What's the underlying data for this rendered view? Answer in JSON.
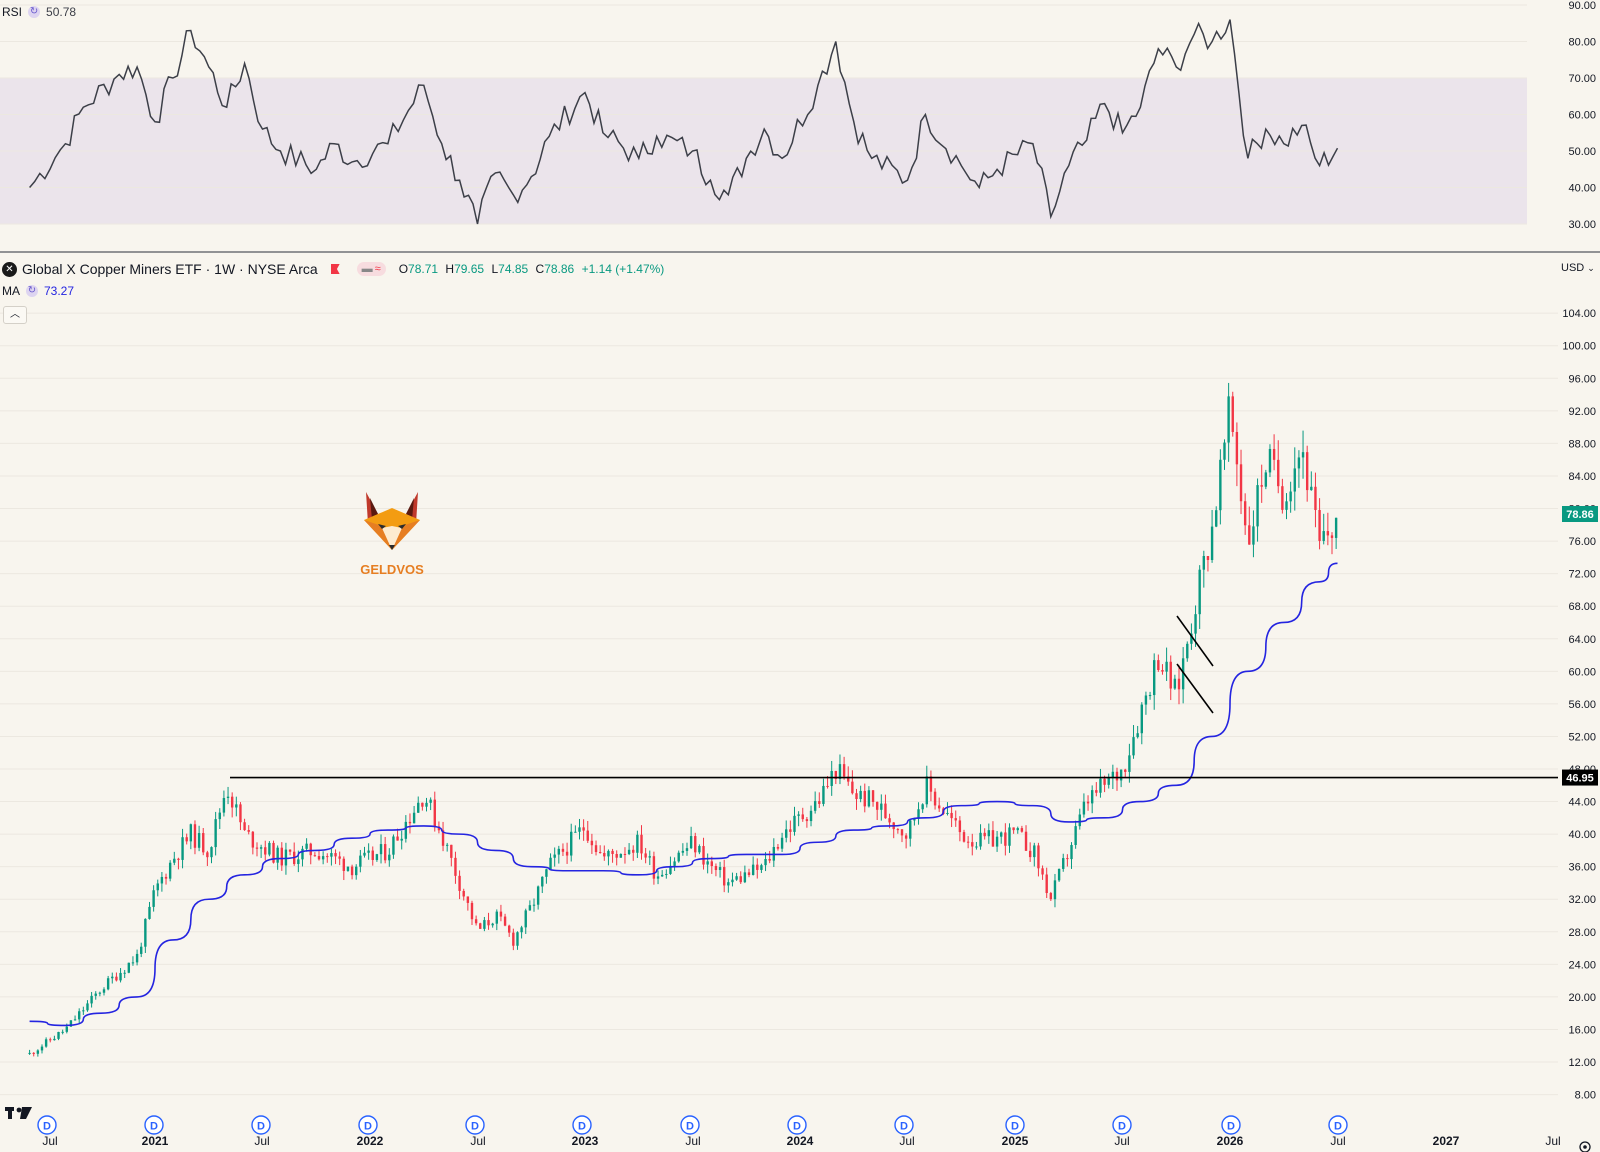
{
  "rsi_pane": {
    "label": "RSI",
    "value": "50.78",
    "ticks": [
      "90.00",
      "80.00",
      "70.00",
      "60.00",
      "50.00",
      "40.00",
      "30.00"
    ],
    "tick_values": [
      90,
      80,
      70,
      60,
      50,
      40,
      30
    ]
  },
  "price_pane": {
    "title": "Global X Copper Miners ETF · 1W · NYSE Arca",
    "ohlc": {
      "o_label": "O",
      "o": "78.71",
      "h_label": "H",
      "h": "79.65",
      "l_label": "L",
      "l": "74.85",
      "c_label": "C",
      "c": "78.86",
      "change": "+1.14 (+1.47%)"
    },
    "ma_label": "MA",
    "ma_value": "73.27",
    "currency": "USD",
    "last_price_badge": "78.86",
    "level_badge": "46.95",
    "ticks": [
      "104.00",
      "100.00",
      "96.00",
      "92.00",
      "88.00",
      "84.00",
      "80.00",
      "76.00",
      "72.00",
      "68.00",
      "64.00",
      "60.00",
      "56.00",
      "52.00",
      "48.00",
      "44.00",
      "40.00",
      "36.00",
      "32.00",
      "28.00",
      "24.00",
      "20.00",
      "16.00",
      "12.00",
      "8.00"
    ],
    "tick_values": [
      104,
      100,
      96,
      92,
      88,
      84,
      80,
      76,
      72,
      68,
      64,
      60,
      56,
      52,
      48,
      44,
      40,
      36,
      32,
      28,
      24,
      20,
      16,
      12,
      8
    ]
  },
  "watermark": {
    "text": "GELDVOS"
  },
  "x_axis": {
    "labels": [
      "Jul",
      "2021",
      "Jul",
      "2022",
      "Jul",
      "2023",
      "Jul",
      "2024",
      "Jul",
      "2025",
      "Jul",
      "2026",
      "Jul",
      "2027",
      "Jul"
    ],
    "year_flags": [
      false,
      true,
      false,
      true,
      false,
      true,
      false,
      true,
      false,
      true,
      false,
      true,
      false,
      true,
      false
    ],
    "dividend_marker": "D"
  },
  "colors": {
    "up": "#089981",
    "down": "#f23645",
    "ma": "#2424e0",
    "rsi_line": "#3c3f48",
    "rsi_band": "#e9e3ea",
    "background": "#f8f5ee"
  },
  "chart_data": [
    {
      "type": "line",
      "name": "RSI",
      "ylim": [
        30,
        90
      ],
      "bands": [
        30,
        50,
        70
      ],
      "points": [
        [
          "2020-06",
          40
        ],
        [
          "2020-08",
          52
        ],
        [
          "2020-09",
          62
        ],
        [
          "2020-11",
          71
        ],
        [
          "2020-12",
          73
        ],
        [
          "2021-01",
          58
        ],
        [
          "2021-02",
          70
        ],
        [
          "2021-03",
          83
        ],
        [
          "2021-04",
          73
        ],
        [
          "2021-05",
          62
        ],
        [
          "2021-06",
          74
        ],
        [
          "2021-07",
          56
        ],
        [
          "2021-08",
          50
        ],
        [
          "2021-10",
          45
        ],
        [
          "2021-11",
          52
        ],
        [
          "2021-12",
          47
        ],
        [
          "2022-02",
          52
        ],
        [
          "2022-04",
          68
        ],
        [
          "2022-05",
          52
        ],
        [
          "2022-06",
          42
        ],
        [
          "2022-07",
          30
        ],
        [
          "2022-08",
          44
        ],
        [
          "2022-09",
          38
        ],
        [
          "2022-10",
          43
        ],
        [
          "2022-11",
          54
        ],
        [
          "2023-01",
          66
        ],
        [
          "2023-02",
          55
        ],
        [
          "2023-04",
          48
        ],
        [
          "2023-05",
          54
        ],
        [
          "2023-07",
          50
        ],
        [
          "2023-08",
          42
        ],
        [
          "2023-09",
          38
        ],
        [
          "2023-10",
          48
        ],
        [
          "2023-11",
          56
        ],
        [
          "2023-12",
          48
        ],
        [
          "2024-02",
          68
        ],
        [
          "2024-03",
          80
        ],
        [
          "2024-04",
          58
        ],
        [
          "2024-05",
          48
        ],
        [
          "2024-07",
          42
        ],
        [
          "2024-08",
          60
        ],
        [
          "2024-10",
          46
        ],
        [
          "2024-11",
          40
        ],
        [
          "2024-12",
          45
        ],
        [
          "2025-02",
          52
        ],
        [
          "2025-03",
          32
        ],
        [
          "2025-04",
          46
        ],
        [
          "2025-05",
          53
        ],
        [
          "2025-06",
          63
        ],
        [
          "2025-07",
          55
        ],
        [
          "2025-08",
          62
        ],
        [
          "2025-09",
          78
        ],
        [
          "2025-10",
          73
        ],
        [
          "2025-11",
          82
        ],
        [
          "2025-12",
          80
        ],
        [
          "2026-01",
          86
        ],
        [
          "2026-02",
          48
        ],
        [
          "2026-03",
          56
        ],
        [
          "2026-04",
          52
        ],
        [
          "2026-05",
          57
        ],
        [
          "2026-06",
          46
        ],
        [
          "2026-07",
          50.78
        ]
      ]
    },
    {
      "type": "candlestick",
      "name": "Global X Copper Miners ETF · 1W · NYSE Arca",
      "ylim": [
        8,
        104
      ],
      "close_path": [
        [
          "2020-06",
          13
        ],
        [
          "2020-08",
          16
        ],
        [
          "2020-10",
          21
        ],
        [
          "2020-12",
          25
        ],
        [
          "2021-01",
          33
        ],
        [
          "2021-02",
          37
        ],
        [
          "2021-03",
          40
        ],
        [
          "2021-04",
          38
        ],
        [
          "2021-05",
          46
        ],
        [
          "2021-06",
          40
        ],
        [
          "2021-08",
          37
        ],
        [
          "2021-10",
          38
        ],
        [
          "2021-12",
          36
        ],
        [
          "2022-02",
          38
        ],
        [
          "2022-04",
          45
        ],
        [
          "2022-05",
          40
        ],
        [
          "2022-06",
          34
        ],
        [
          "2022-07",
          28
        ],
        [
          "2022-08",
          30
        ],
        [
          "2022-09",
          27
        ],
        [
          "2022-10",
          31
        ],
        [
          "2022-11",
          36
        ],
        [
          "2023-01",
          41
        ],
        [
          "2023-02",
          37
        ],
        [
          "2023-04",
          39
        ],
        [
          "2023-05",
          35
        ],
        [
          "2023-07",
          39
        ],
        [
          "2023-08",
          36
        ],
        [
          "2023-09",
          34
        ],
        [
          "2023-11",
          36
        ],
        [
          "2023-12",
          40
        ],
        [
          "2024-02",
          44
        ],
        [
          "2024-03",
          48
        ],
        [
          "2024-04",
          45
        ],
        [
          "2024-05",
          44
        ],
        [
          "2024-07",
          40
        ],
        [
          "2024-08",
          46
        ],
        [
          "2024-10",
          40
        ],
        [
          "2024-11",
          39
        ],
        [
          "2025-01",
          40
        ],
        [
          "2025-02",
          38
        ],
        [
          "2025-03",
          32
        ],
        [
          "2025-04",
          38
        ],
        [
          "2025-05",
          44
        ],
        [
          "2025-06",
          46
        ],
        [
          "2025-07",
          48
        ],
        [
          "2025-08",
          55
        ],
        [
          "2025-09",
          62
        ],
        [
          "2025-10",
          57
        ],
        [
          "2025-11",
          68
        ],
        [
          "2025-12",
          78
        ],
        [
          "2026-01",
          92
        ],
        [
          "2026-02",
          76
        ],
        [
          "2026-03",
          86
        ],
        [
          "2026-04",
          82
        ],
        [
          "2026-05",
          88
        ],
        [
          "2026-06",
          75
        ],
        [
          "2026-07",
          78.86
        ]
      ],
      "ma_path": [
        [
          "2020-06",
          17
        ],
        [
          "2020-08",
          16.5
        ],
        [
          "2020-10",
          18
        ],
        [
          "2020-12",
          20
        ],
        [
          "2021-02",
          27
        ],
        [
          "2021-04",
          32
        ],
        [
          "2021-06",
          35
        ],
        [
          "2021-08",
          37
        ],
        [
          "2021-10",
          38
        ],
        [
          "2021-12",
          39.5
        ],
        [
          "2022-02",
          40.5
        ],
        [
          "2022-04",
          41
        ],
        [
          "2022-06",
          40
        ],
        [
          "2022-08",
          38
        ],
        [
          "2022-10",
          36
        ],
        [
          "2022-12",
          35.5
        ],
        [
          "2023-02",
          35.5
        ],
        [
          "2023-04",
          35
        ],
        [
          "2023-06",
          36
        ],
        [
          "2023-08",
          37
        ],
        [
          "2023-10",
          37.5
        ],
        [
          "2023-12",
          37.5
        ],
        [
          "2024-02",
          39
        ],
        [
          "2024-04",
          40.5
        ],
        [
          "2024-06",
          41
        ],
        [
          "2024-08",
          42
        ],
        [
          "2024-10",
          43.5
        ],
        [
          "2024-12",
          44
        ],
        [
          "2025-02",
          43.5
        ],
        [
          "2025-04",
          41.5
        ],
        [
          "2025-06",
          42
        ],
        [
          "2025-08",
          44
        ],
        [
          "2025-10",
          46
        ],
        [
          "2025-12",
          52
        ],
        [
          "2026-02",
          60
        ],
        [
          "2026-04",
          66
        ],
        [
          "2026-06",
          71
        ],
        [
          "2026-07",
          73.27
        ]
      ],
      "horizontal_level": 46.95,
      "last_close": 78.86
    }
  ]
}
